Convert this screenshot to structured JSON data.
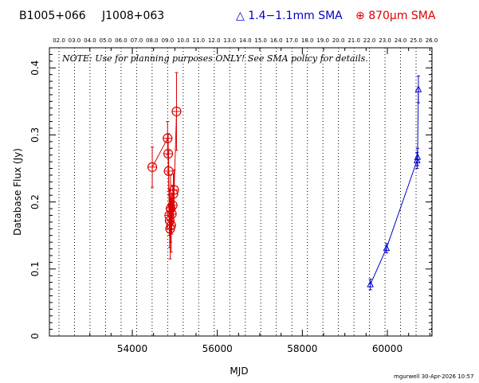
{
  "header": {
    "source_name": "B1005+066",
    "alt_name": "J1008+063",
    "legend_blue": "1.4−1.1mm SMA",
    "legend_red": "870μm SMA",
    "blue_color": "#0000cc",
    "red_color": "#dd0000"
  },
  "footer": {
    "credit": "mgurwell 30-Apr-2026 10:57"
  },
  "chart_data": {
    "type": "scatter",
    "title": "",
    "xlabel": "MJD",
    "ylabel": "Database Flux (Jy)",
    "xlim": [
      52050,
      61050
    ],
    "ylim": [
      0,
      0.43
    ],
    "xticks": [
      54000,
      56000,
      58000,
      60000
    ],
    "xtick_labels": [
      "54000",
      "56000",
      "58000",
      "60000"
    ],
    "yticks": [
      0,
      0.1,
      0.2,
      0.3,
      0.4
    ],
    "ytick_labels": [
      "0",
      "0.1",
      "0.2",
      "0.3",
      "0.4"
    ],
    "grid": "dotted vertical lines at year boundaries",
    "note": "NOTE: Use for planning purposes ONLY!  See SMA policy for details.",
    "year_labels": [
      "02.0",
      "03.0",
      "04.0",
      "05.0",
      "06.0",
      "07.0",
      "08.0",
      "09.0",
      "10.0",
      "11.0",
      "12.0",
      "13.0",
      "14.0",
      "15.0",
      "16.0",
      "17.0",
      "18.0",
      "19.0",
      "20.0",
      "21.0",
      "22.0",
      "23.0",
      "24.0",
      "25.0",
      "26.0"
    ],
    "year_mjd": [
      52275,
      52640,
      53005,
      53371,
      53736,
      54101,
      54466,
      54832,
      55197,
      55562,
      55927,
      56293,
      56658,
      57023,
      57388,
      57754,
      58119,
      58484,
      58849,
      59215,
      59580,
      59945,
      60310,
      60676,
      61041
    ],
    "series": [
      {
        "name": "1.4−1.1mm SMA",
        "marker": "triangle",
        "color": "#0000cc",
        "connected": true,
        "points": [
          {
            "x": 59600,
            "y": 0.077,
            "err": 0.008
          },
          {
            "x": 59980,
            "y": 0.131,
            "err": 0.007
          },
          {
            "x": 60700,
            "y": 0.262,
            "err": 0.012
          },
          {
            "x": 60710,
            "y": 0.267,
            "err": 0.013
          },
          {
            "x": 60730,
            "y": 0.368,
            "err": 0.02
          }
        ]
      },
      {
        "name": "870μm SMA",
        "marker": "circle-plus",
        "color": "#dd0000",
        "connected": true,
        "points": [
          {
            "x": 54470,
            "y": 0.252,
            "err": 0.03
          },
          {
            "x": 54830,
            "y": 0.295,
            "err": 0.025
          },
          {
            "x": 54845,
            "y": 0.272,
            "err": 0.03
          },
          {
            "x": 54855,
            "y": 0.246,
            "err": 0.03
          },
          {
            "x": 54870,
            "y": 0.18,
            "err": 0.03
          },
          {
            "x": 54880,
            "y": 0.172,
            "err": 0.04
          },
          {
            "x": 54890,
            "y": 0.16,
            "err": 0.045
          },
          {
            "x": 54900,
            "y": 0.19,
            "err": 0.05
          },
          {
            "x": 54915,
            "y": 0.165,
            "err": 0.04
          },
          {
            "x": 54930,
            "y": 0.182,
            "err": 0.03
          },
          {
            "x": 54950,
            "y": 0.195,
            "err": 0.03
          },
          {
            "x": 54965,
            "y": 0.212,
            "err": 0.03
          },
          {
            "x": 54985,
            "y": 0.218,
            "err": 0.03
          },
          {
            "x": 55040,
            "y": 0.335,
            "err": 0.058
          }
        ]
      }
    ]
  }
}
